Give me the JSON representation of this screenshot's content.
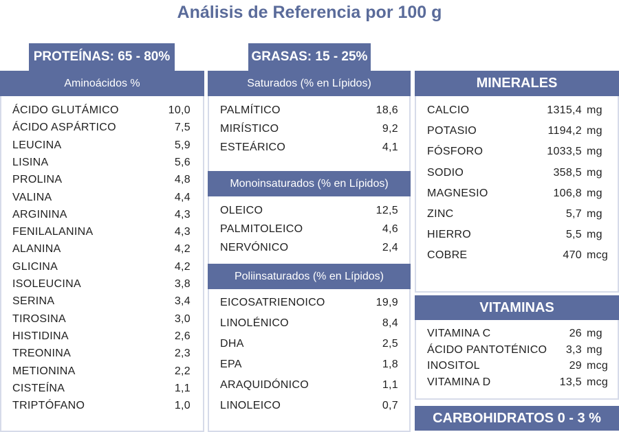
{
  "title": "Análisis de Referencia por 100 g",
  "proteins": {
    "tab": "PROTEÍNAS: 65 - 80%",
    "header": "Aminoácidos %",
    "items": [
      {
        "name": "ÁCIDO GLUTÁMICO",
        "value": "10,0"
      },
      {
        "name": "ÁCIDO ASPÁRTICO",
        "value": "7,5"
      },
      {
        "name": "LEUCINA",
        "value": "5,9"
      },
      {
        "name": "LISINA",
        "value": "5,6"
      },
      {
        "name": "PROLINA",
        "value": "4,8"
      },
      {
        "name": "VALINA",
        "value": "4,4"
      },
      {
        "name": "ARGININA",
        "value": "4,3"
      },
      {
        "name": "FENILALANINA",
        "value": "4,3"
      },
      {
        "name": "ALANINA",
        "value": "4,2"
      },
      {
        "name": "GLICINA",
        "value": "4,2"
      },
      {
        "name": "ISOLEUCINA",
        "value": "3,8"
      },
      {
        "name": "SERINA",
        "value": "3,4"
      },
      {
        "name": "TIROSINA",
        "value": "3,0"
      },
      {
        "name": "HISTIDINA",
        "value": "2,6"
      },
      {
        "name": "TREONINA",
        "value": "2,3"
      },
      {
        "name": "METIONINA",
        "value": "2,2"
      },
      {
        "name": "CISTEÍNA",
        "value": "1,1"
      },
      {
        "name": "TRIPTÓFANO",
        "value": "1,0"
      }
    ]
  },
  "fats": {
    "tab": "GRASAS: 15 - 25%",
    "saturated": {
      "header": "Saturados (% en Lípidos)",
      "items": [
        {
          "name": "PALMÍTICO",
          "value": "18,6"
        },
        {
          "name": "MIRÍSTICO",
          "value": "9,2"
        },
        {
          "name": "ESTEÁRICO",
          "value": "4,1"
        }
      ]
    },
    "mono": {
      "header": "Monoinsaturados (% en Lípidos)",
      "items": [
        {
          "name": "OLEICO",
          "value": "12,5"
        },
        {
          "name": "PALMITOLEICO",
          "value": "4,6"
        },
        {
          "name": "NERVÓNICO",
          "value": "2,4"
        }
      ]
    },
    "poly": {
      "header": "Poliinsaturados  (% en Lípidos)",
      "items": [
        {
          "name": "EICOSATRIENOICO",
          "value": "19,9"
        },
        {
          "name": "LINOLÉNICO",
          "value": "8,4"
        },
        {
          "name": "DHA",
          "value": "2,5"
        },
        {
          "name": "EPA",
          "value": "1,8"
        },
        {
          "name": "ARAQUIDÓNICO",
          "value": "1,1"
        },
        {
          "name": "LINOLEICO",
          "value": "0,7"
        }
      ]
    }
  },
  "minerals": {
    "header": "MINERALES",
    "items": [
      {
        "name": "CALCIO",
        "value": "1315,4",
        "unit": "mg"
      },
      {
        "name": "POTASIO",
        "value": "1194,2",
        "unit": "mg"
      },
      {
        "name": "FÓSFORO",
        "value": "1033,5",
        "unit": "mg"
      },
      {
        "name": "SODIO",
        "value": "358,5",
        "unit": "mg"
      },
      {
        "name": "MAGNESIO",
        "value": "106,8",
        "unit": "mg"
      },
      {
        "name": "ZINC",
        "value": "5,7",
        "unit": "mg"
      },
      {
        "name": "HIERRO",
        "value": "5,5",
        "unit": "mg"
      },
      {
        "name": "COBRE",
        "value": "470",
        "unit": "mcg"
      }
    ]
  },
  "vitamins": {
    "header": "VITAMINAS",
    "items": [
      {
        "name": "VITAMINA C",
        "value": "26",
        "unit": "mg"
      },
      {
        "name": "ÁCIDO PANTOTÉNICO",
        "value": "3,3",
        "unit": "mg"
      },
      {
        "name": "INOSITOL",
        "value": "29",
        "unit": "mcg"
      },
      {
        "name": "VITAMINA D",
        "value": "13,5",
        "unit": "mcg"
      }
    ]
  },
  "carbs": {
    "label": "CARBOHIDRATOS 0 - 3 %"
  }
}
